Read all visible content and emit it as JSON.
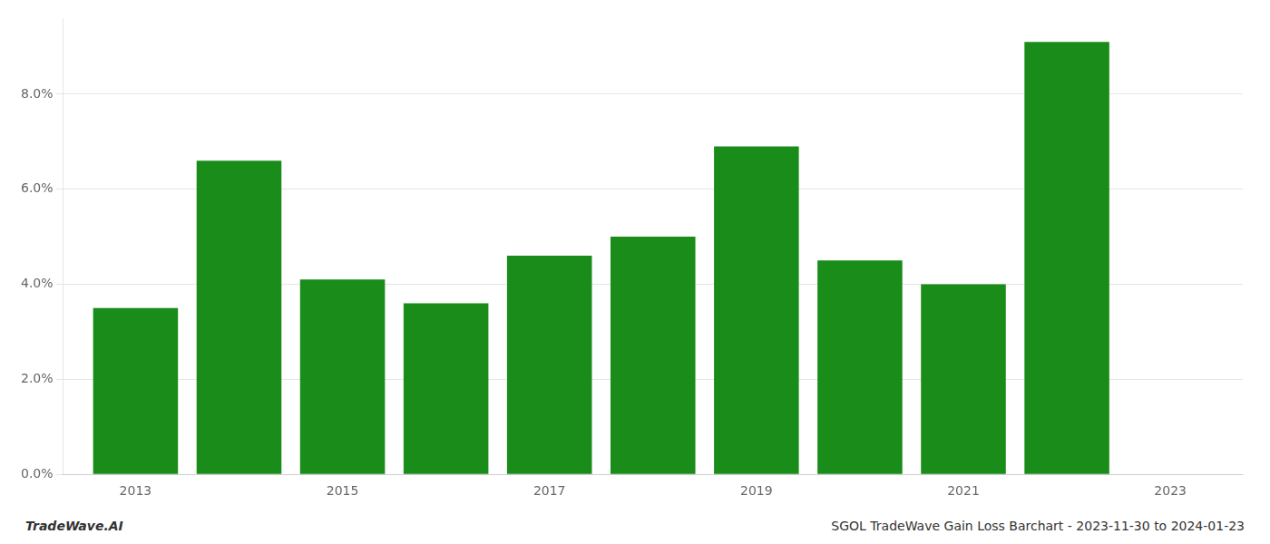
{
  "chart_data": {
    "type": "bar",
    "x": [
      2013,
      2014,
      2015,
      2016,
      2017,
      2018,
      2019,
      2020,
      2021,
      2022
    ],
    "values": [
      0.035,
      0.066,
      0.041,
      0.036,
      0.046,
      0.05,
      0.069,
      0.045,
      0.04,
      0.091
    ],
    "color": "#198c19",
    "xlim": [
      2012.3,
      2023.7
    ],
    "xticks": [
      2013,
      2015,
      2017,
      2019,
      2021,
      2023
    ],
    "ylim": [
      0,
      0.096
    ],
    "yticks": [
      {
        "value": 0.0,
        "label": "0.0%"
      },
      {
        "value": 0.02,
        "label": "2.0%"
      },
      {
        "value": 0.04,
        "label": "4.0%"
      },
      {
        "value": 0.06,
        "label": "6.0%"
      },
      {
        "value": 0.08,
        "label": "8.0%"
      }
    ],
    "grid": "y",
    "annotations": [
      "TradeWave.AI",
      "SGOL TradeWave Gain Loss Barchart - 2023-11-30 to 2024-01-23"
    ]
  }
}
